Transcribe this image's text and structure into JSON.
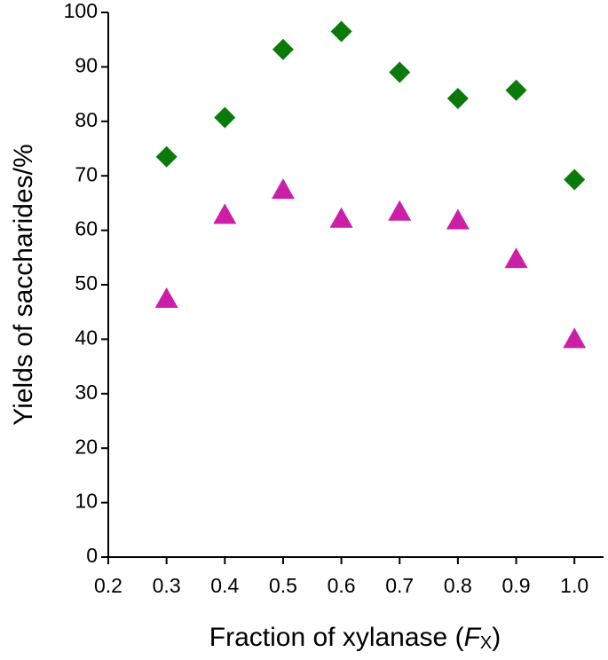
{
  "chart_data": {
    "type": "scatter",
    "x_label": {
      "text": "Fraction of xylanase (",
      "symbol": "F",
      "subscript": "X",
      "close": ")"
    },
    "y_label": "Yields of saccharides/%",
    "x": [
      0.3,
      0.4,
      0.5,
      0.6,
      0.7,
      0.8,
      0.9,
      1.0
    ],
    "series": [
      {
        "color": "#0a7a0a",
        "marker": "diamond",
        "values": [
          73.5,
          80.7,
          93.2,
          96.5,
          89,
          84.2,
          85.7,
          69.3
        ]
      },
      {
        "color": "#cc1fa8",
        "marker": "triangle",
        "values": [
          47.4,
          62.8,
          67.4,
          62.1,
          63.4,
          61.8,
          54.7,
          40
        ]
      }
    ],
    "xlim": [
      0.2,
      1.05
    ],
    "xticks": [
      0.2,
      0.3,
      0.4,
      0.5,
      0.6,
      0.7,
      0.8,
      0.9,
      {
        "value": 1,
        "label": "1.0"
      }
    ],
    "ylim": [
      0,
      100
    ],
    "yticks": [
      0,
      10,
      20,
      30,
      40,
      50,
      60,
      70,
      80,
      90,
      100
    ]
  }
}
